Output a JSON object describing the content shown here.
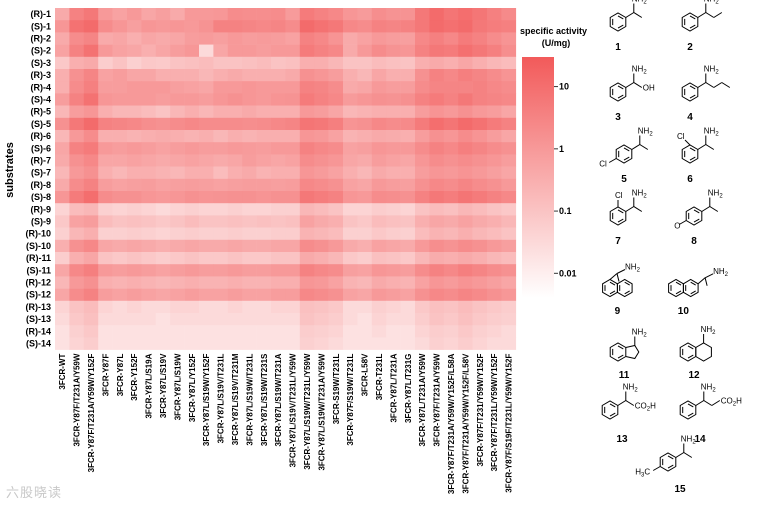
{
  "chart_data": {
    "type": "heatmap",
    "ylabel": "substrates",
    "rows": [
      "(R)-1",
      "(S)-1",
      "(R)-2",
      "(S)-2",
      "(S)-3",
      "(R)-3",
      "(R)-4",
      "(S)-4",
      "(R)-5",
      "(S)-5",
      "(R)-6",
      "(S)-6",
      "(R)-7",
      "(S)-7",
      "(R)-8",
      "(S)-8",
      "(R)-9",
      "(S)-9",
      "(R)-10",
      "(S)-10",
      "(R)-11",
      "(S)-11",
      "(R)-12",
      "(S)-12",
      "(R)-13",
      "(S)-13",
      "(R)-14",
      "(S)-14"
    ],
    "columns": [
      "3FCR-WT",
      "3FCR-Y87F/T231A/Y59W",
      "3FCR-Y87F/T231A/Y59W/Y152F",
      "3FCR-Y87F",
      "3FCR-Y87L",
      "3FCR-Y152F",
      "3FCR-Y87L/S19A",
      "3FCR-Y87L/S19V",
      "3FCR-Y87L/S19W",
      "3FCR-Y87L/Y152F",
      "3FCR-Y87L/S19W/Y152F",
      "3FCR-Y87L/S19V/T231L",
      "3FCR-Y87L/S19V/T231M",
      "3FCR-Y87L/S19W/T231L",
      "3FCR-Y87L/S19W/T231S",
      "3FCR-Y87L/S19W/T231A",
      "3FCR-Y87L/S19V/T231L/Y59W",
      "3FCR-Y87L/S19W/T231L/Y59W",
      "3FCR-Y87L/S19W/T231A/Y59W",
      "3FCR-S19W/T231L",
      "3FCR-Y87F/S19W/T231L",
      "3FCR-L58V",
      "3FCR-T231L",
      "3FCR-Y87L/T231A",
      "3FCR-Y87L/T231G",
      "3FCR-Y87L/T231A/Y59W",
      "3FCR-Y87F/T231A/Y59W",
      "3FCR-Y87F/T231A/Y59W/Y152F/L58A",
      "3FCR-Y87F/T231A/Y59W/Y152F/L58V",
      "3FCR-Y87F/T231/Y59W/Y152F",
      "3FCR-Y87F/T231L/Y59W/Y152F",
      "3FCR-Y87F/S19F/T231L/Y59W/Y152F"
    ],
    "values": [
      [
        0.4,
        3.5,
        6,
        1,
        0.6,
        1,
        0.5,
        0.7,
        0.4,
        1,
        1,
        1.1,
        2,
        1.8,
        1.8,
        2,
        0.9,
        5,
        3.5,
        2.5,
        1.2,
        0.9,
        1.8,
        1.4,
        1.4,
        6,
        12,
        7,
        10,
        6.5,
        3.8,
        2.2
      ],
      [
        1.2,
        8,
        12,
        2,
        1.2,
        0.7,
        1.2,
        1,
        1.2,
        1,
        1.4,
        3.5,
        3.5,
        3,
        2.5,
        3,
        2,
        12,
        8,
        6,
        2.5,
        2,
        3.5,
        3,
        3.5,
        6,
        12,
        9,
        12,
        6,
        4.5,
        3.8
      ],
      [
        0.4,
        2,
        3,
        0.4,
        0.5,
        0.3,
        0.5,
        0.4,
        0.5,
        0.8,
        0.9,
        0.7,
        1,
        0.8,
        0.9,
        0.8,
        0.6,
        3.5,
        2.5,
        1.3,
        0.4,
        0.6,
        1,
        0.8,
        0.7,
        2.5,
        3.8,
        2.5,
        5,
        3.5,
        2,
        1.3
      ],
      [
        0.6,
        3.5,
        8,
        1,
        0.6,
        0.5,
        0.3,
        0.5,
        0.8,
        1.1,
        0.03,
        0.5,
        1,
        1,
        0.8,
        1,
        1,
        5,
        3.5,
        2.5,
        0.4,
        1,
        2,
        1.4,
        1.2,
        3.5,
        6,
        5,
        9,
        6,
        3.8,
        1.8
      ],
      [
        0.08,
        0.3,
        0.4,
        0.06,
        0.1,
        0.05,
        0.08,
        0.07,
        0.1,
        0.12,
        0.15,
        0.1,
        0.1,
        0.12,
        0.15,
        0.1,
        0.12,
        0.3,
        0.3,
        0.2,
        0.1,
        0.1,
        0.15,
        0.12,
        0.1,
        0.3,
        0.4,
        0.3,
        0.5,
        0.3,
        0.2,
        0.15
      ],
      [
        0.3,
        1.5,
        3,
        0.6,
        0.8,
        0.5,
        0.5,
        0.3,
        0.3,
        0.3,
        0.2,
        0.3,
        0.4,
        0.3,
        0.3,
        0.3,
        0.4,
        1.5,
        1.2,
        0.8,
        0.3,
        0.2,
        0.5,
        0.3,
        0.3,
        1.5,
        3.5,
        2.5,
        4,
        3,
        2,
        1.3
      ],
      [
        0.3,
        2,
        3.8,
        0.8,
        0.8,
        1,
        1,
        1,
        0.7,
        0.6,
        0.5,
        1,
        1,
        1.2,
        1,
        1,
        1,
        3.5,
        3,
        2,
        0.4,
        0.5,
        1,
        0.8,
        0.8,
        2,
        3,
        3,
        3,
        3.5,
        2.5,
        2
      ],
      [
        0.8,
        3.5,
        8,
        1.2,
        1,
        1,
        1,
        0.8,
        1,
        1,
        0.8,
        1.2,
        1.5,
        1.2,
        1,
        1.3,
        1.4,
        5,
        3.5,
        2.5,
        0.9,
        1.2,
        1.5,
        1.4,
        1.6,
        3.5,
        5,
        3.5,
        6,
        3.5,
        3,
        2.5
      ],
      [
        0.2,
        0.8,
        1.2,
        0.3,
        0.2,
        0.2,
        0.15,
        0.1,
        0.2,
        0.3,
        0.2,
        0.3,
        0.3,
        0.4,
        0.3,
        0.3,
        0.3,
        1,
        0.8,
        0.5,
        0.2,
        0.25,
        0.3,
        0.3,
        0.3,
        0.8,
        1.3,
        1,
        1.5,
        1,
        0.8,
        0.5
      ],
      [
        1.5,
        6,
        12,
        3.5,
        3,
        2.5,
        1.8,
        1.5,
        2,
        2.5,
        2,
        2,
        2,
        1.8,
        2,
        2.5,
        3,
        7,
        6,
        4,
        1.3,
        1.5,
        2.5,
        2,
        2.2,
        5,
        10,
        7,
        12,
        8,
        5,
        3.5
      ],
      [
        0.2,
        1,
        2,
        0.3,
        0.3,
        0.25,
        0.3,
        0.35,
        0.3,
        0.25,
        0.3,
        0.2,
        0.3,
        0.25,
        0.3,
        0.3,
        0.3,
        1.2,
        1,
        0.6,
        0.25,
        0.3,
        0.4,
        0.35,
        0.3,
        0.8,
        1.5,
        1.2,
        2,
        1.3,
        0.8,
        0.5
      ],
      [
        0.5,
        3.5,
        5,
        1,
        0.8,
        1,
        0.8,
        0.6,
        0.8,
        1,
        0.8,
        0.8,
        1,
        0.9,
        0.8,
        1,
        1,
        3.5,
        2.5,
        2,
        0.6,
        0.7,
        1.2,
        1,
        1,
        2,
        3.5,
        2.5,
        4,
        3,
        2,
        1.5
      ],
      [
        0.4,
        1.5,
        2.5,
        0.5,
        0.5,
        0.6,
        0.5,
        0.4,
        0.5,
        0.6,
        0.5,
        0.4,
        0.5,
        0.8,
        0.6,
        0.5,
        0.6,
        2,
        1.5,
        1.2,
        0.5,
        0.4,
        0.8,
        0.6,
        0.5,
        1.2,
        2,
        1.5,
        2,
        1.5,
        1.2,
        0.8
      ],
      [
        0.2,
        1,
        1.5,
        0.3,
        0.2,
        0.3,
        0.3,
        0.25,
        0.2,
        0.3,
        0.3,
        0.15,
        0.3,
        0.4,
        0.25,
        0.3,
        0.3,
        1.2,
        0.9,
        0.6,
        0.3,
        0.2,
        0.4,
        0.3,
        0.3,
        0.8,
        1.2,
        1,
        1.3,
        1,
        0.7,
        0.5
      ],
      [
        0.4,
        2,
        3.5,
        0.8,
        0.6,
        0.7,
        0.8,
        0.6,
        0.7,
        0.8,
        0.7,
        0.6,
        0.7,
        0.8,
        0.8,
        0.7,
        0.8,
        2.5,
        2,
        1.5,
        0.6,
        0.5,
        1,
        0.8,
        0.7,
        1.5,
        2.5,
        2,
        3,
        2,
        1.5,
        1
      ],
      [
        1.2,
        5,
        10,
        2,
        1.5,
        1.5,
        1.2,
        1,
        1.2,
        1.5,
        1.3,
        1.4,
        1.5,
        1.5,
        1.3,
        1.5,
        1.5,
        6,
        4.5,
        3.5,
        1.2,
        1,
        2,
        1.8,
        1.5,
        3.5,
        6,
        4.5,
        7,
        5,
        3.5,
        2.5
      ],
      [
        0.04,
        0.15,
        0.2,
        0.05,
        0.04,
        0.05,
        0.04,
        0.03,
        0.04,
        0.05,
        0.04,
        0.04,
        0.05,
        0.04,
        0.04,
        0.05,
        0.05,
        0.2,
        0.15,
        0.1,
        0.04,
        0.04,
        0.06,
        0.05,
        0.04,
        0.1,
        0.15,
        0.12,
        0.2,
        0.15,
        0.1,
        0.08
      ],
      [
        0.08,
        0.6,
        0.8,
        0.15,
        0.1,
        0.12,
        0.1,
        0.08,
        0.1,
        0.15,
        0.1,
        0.1,
        0.12,
        0.1,
        0.12,
        0.1,
        0.12,
        0.6,
        0.4,
        0.3,
        0.1,
        0.08,
        0.15,
        0.12,
        0.1,
        0.3,
        0.5,
        0.4,
        0.6,
        0.4,
        0.3,
        0.2
      ],
      [
        0.05,
        0.2,
        0.3,
        0.05,
        0.05,
        0.06,
        0.05,
        0.04,
        0.05,
        0.06,
        0.05,
        0.05,
        0.06,
        0.05,
        0.05,
        0.06,
        0.06,
        0.25,
        0.2,
        0.15,
        0.05,
        0.05,
        0.08,
        0.06,
        0.05,
        0.15,
        0.25,
        0.2,
        0.3,
        0.2,
        0.15,
        0.1
      ],
      [
        0.3,
        1.5,
        2.5,
        0.5,
        0.4,
        0.5,
        0.4,
        0.3,
        0.4,
        0.5,
        0.4,
        0.4,
        0.5,
        0.4,
        0.4,
        0.5,
        0.5,
        2,
        1.5,
        1,
        0.4,
        0.3,
        0.6,
        0.5,
        0.4,
        1,
        1.8,
        1.4,
        2,
        1.5,
        1,
        0.7
      ],
      [
        0.06,
        0.3,
        0.5,
        0.1,
        0.08,
        0.1,
        0.08,
        0.06,
        0.08,
        0.1,
        0.08,
        0.08,
        0.1,
        0.08,
        0.08,
        0.1,
        0.1,
        0.4,
        0.3,
        0.2,
        0.08,
        0.06,
        0.12,
        0.1,
        0.08,
        0.2,
        0.35,
        0.3,
        0.4,
        0.3,
        0.2,
        0.15
      ],
      [
        0.5,
        2.5,
        4,
        1,
        0.8,
        1,
        0.8,
        0.6,
        0.8,
        1,
        0.8,
        0.8,
        1,
        0.8,
        0.8,
        1,
        1,
        3.5,
        2.5,
        2,
        0.7,
        0.6,
        1.2,
        1,
        0.8,
        2,
        3.5,
        2.5,
        4,
        3,
        2,
        1.5
      ],
      [
        0.2,
        1,
        1.5,
        0.3,
        0.25,
        0.3,
        0.25,
        0.2,
        0.25,
        0.3,
        0.25,
        0.25,
        0.3,
        0.25,
        0.25,
        0.3,
        0.3,
        1.2,
        1,
        0.6,
        0.25,
        0.2,
        0.4,
        0.3,
        0.25,
        0.6,
        1.2,
        0.9,
        1.3,
        1,
        0.7,
        0.5
      ],
      [
        0.5,
        2,
        3.5,
        0.8,
        0.6,
        0.8,
        0.6,
        0.5,
        0.6,
        0.8,
        0.6,
        0.6,
        0.8,
        0.6,
        0.6,
        0.8,
        0.8,
        2.5,
        2,
        1.5,
        0.6,
        0.5,
        1,
        0.8,
        0.6,
        1.5,
        2.5,
        2,
        3,
        2.2,
        1.5,
        1.1
      ],
      [
        0.04,
        0.1,
        0.15,
        0.04,
        0.03,
        0.04,
        0.03,
        0.03,
        0.04,
        0.04,
        0.03,
        0.03,
        0.04,
        0.03,
        0.03,
        0.04,
        0.04,
        0.12,
        0.1,
        0.08,
        0.03,
        0.03,
        0.05,
        0.04,
        0.03,
        0.08,
        0.12,
        0.1,
        0.15,
        0.1,
        0.08,
        0.06
      ],
      [
        0.03,
        0.08,
        0.12,
        0.03,
        0.03,
        0.03,
        0.03,
        0.02,
        0.03,
        0.03,
        0.03,
        0.03,
        0.03,
        0.03,
        0.03,
        0.03,
        0.03,
        0.1,
        0.08,
        0.06,
        0.03,
        0.02,
        0.04,
        0.03,
        0.03,
        0.06,
        0.1,
        0.08,
        0.12,
        0.08,
        0.06,
        0.05
      ],
      [
        0.02,
        0.05,
        0.08,
        0.02,
        0.02,
        0.02,
        0.02,
        0.02,
        0.02,
        0.02,
        0.02,
        0.02,
        0.02,
        0.02,
        0.02,
        0.02,
        0.02,
        0.06,
        0.05,
        0.04,
        0.02,
        0.02,
        0.03,
        0.02,
        0.02,
        0.04,
        0.06,
        0.05,
        0.08,
        0.05,
        0.04,
        0.03
      ],
      [
        0.02,
        0.04,
        0.06,
        0.02,
        0.02,
        0.02,
        0.02,
        0.02,
        0.02,
        0.02,
        0.02,
        0.02,
        0.02,
        0.02,
        0.02,
        0.02,
        0.02,
        0.05,
        0.04,
        0.03,
        0.02,
        0.02,
        0.02,
        0.02,
        0.02,
        0.03,
        0.05,
        0.04,
        0.06,
        0.04,
        0.03,
        0.03
      ]
    ],
    "colorbar": {
      "title_line1": "specific activity",
      "title_line2": "(U/mg)",
      "ticks": [
        "10",
        "1",
        "0.1",
        "0.01"
      ],
      "tick_values": [
        10,
        1,
        0.1,
        0.01
      ],
      "range": [
        0.004,
        30
      ],
      "scale": "log",
      "color_low": "#ffffff",
      "color_high": "#f25a5a"
    }
  },
  "compounds": [
    {
      "num": "1"
    },
    {
      "num": "2"
    },
    {
      "num": "3",
      "group": "OH"
    },
    {
      "num": "4"
    },
    {
      "num": "5",
      "sub": "Cl"
    },
    {
      "num": "6",
      "sub": "Cl"
    },
    {
      "num": "7",
      "sub": "Cl"
    },
    {
      "num": "8",
      "sub": "O"
    },
    {
      "num": "9"
    },
    {
      "num": "10"
    },
    {
      "num": "11"
    },
    {
      "num": "12"
    },
    {
      "num": "13",
      "group": "CO2H"
    },
    {
      "num": "14",
      "group": "CO2H"
    },
    {
      "num": "15",
      "sub": "H3C"
    }
  ],
  "amine_label": "NH2",
  "watermark": "六股晓读"
}
